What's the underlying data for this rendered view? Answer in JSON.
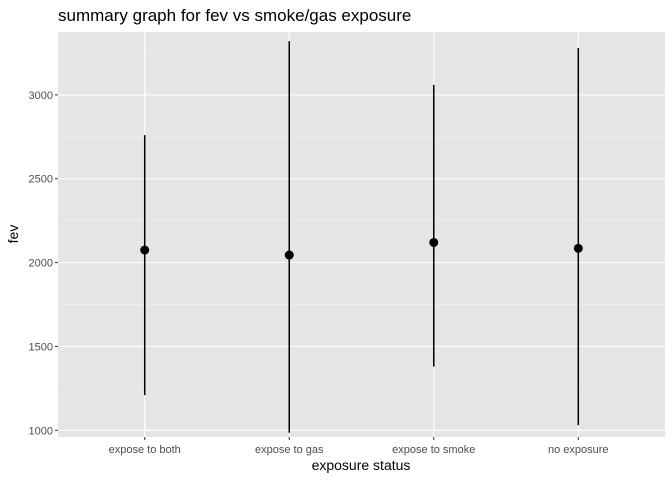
{
  "chart_data": {
    "type": "scatter",
    "title": "summary graph for fev vs smoke/gas exposure",
    "xlabel": "exposure status",
    "ylabel": "fev",
    "categories": [
      "expose to both",
      "expose to gas",
      "expose to smoke",
      "no exposure"
    ],
    "series": [
      {
        "points": [
          2075,
          2045,
          2120,
          2085
        ],
        "lower": [
          1210,
          985,
          1380,
          1030
        ],
        "upper": [
          2760,
          3320,
          3060,
          3280
        ]
      }
    ],
    "y_ticks": [
      1000,
      1500,
      2000,
      2500,
      3000
    ],
    "y_tick_labels": [
      "1000",
      "1500",
      "2000",
      "2500",
      "3000"
    ],
    "ylim": [
      960,
      3375
    ],
    "grid": true,
    "legend": "none",
    "colors": {
      "panel_background": "#e5e5e5",
      "grid_major": "#ffffff",
      "grid_minor": "#f2f2f2",
      "mark": "#000000",
      "tick_text": "#4d4d4d"
    }
  }
}
